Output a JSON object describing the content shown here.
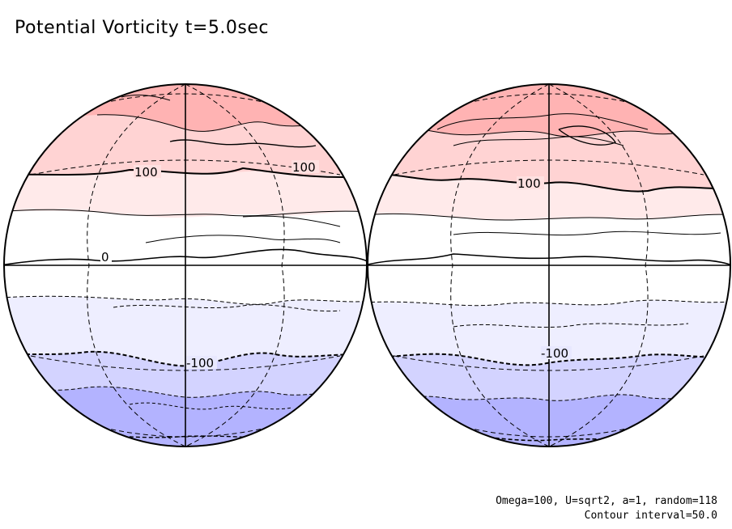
{
  "title": "Potential Vorticity t=5.0sec",
  "footer": {
    "params": "Omega=100, U=sqrt2, a=1, random=118",
    "contour_interval": "Contour interval=50.0"
  },
  "contour_labels": {
    "left": [
      "100",
      "100",
      "0",
      "-100"
    ],
    "right": [
      "100",
      "-100"
    ]
  },
  "colors": {
    "band_n3": "#ffb3b3",
    "band_n2": "#ffd3d3",
    "band_n1": "#ffeaea",
    "band_0": "#ffffff",
    "band_s1": "#eeeeff",
    "band_s2": "#d3d3ff",
    "band_s3": "#b3b3ff"
  }
}
